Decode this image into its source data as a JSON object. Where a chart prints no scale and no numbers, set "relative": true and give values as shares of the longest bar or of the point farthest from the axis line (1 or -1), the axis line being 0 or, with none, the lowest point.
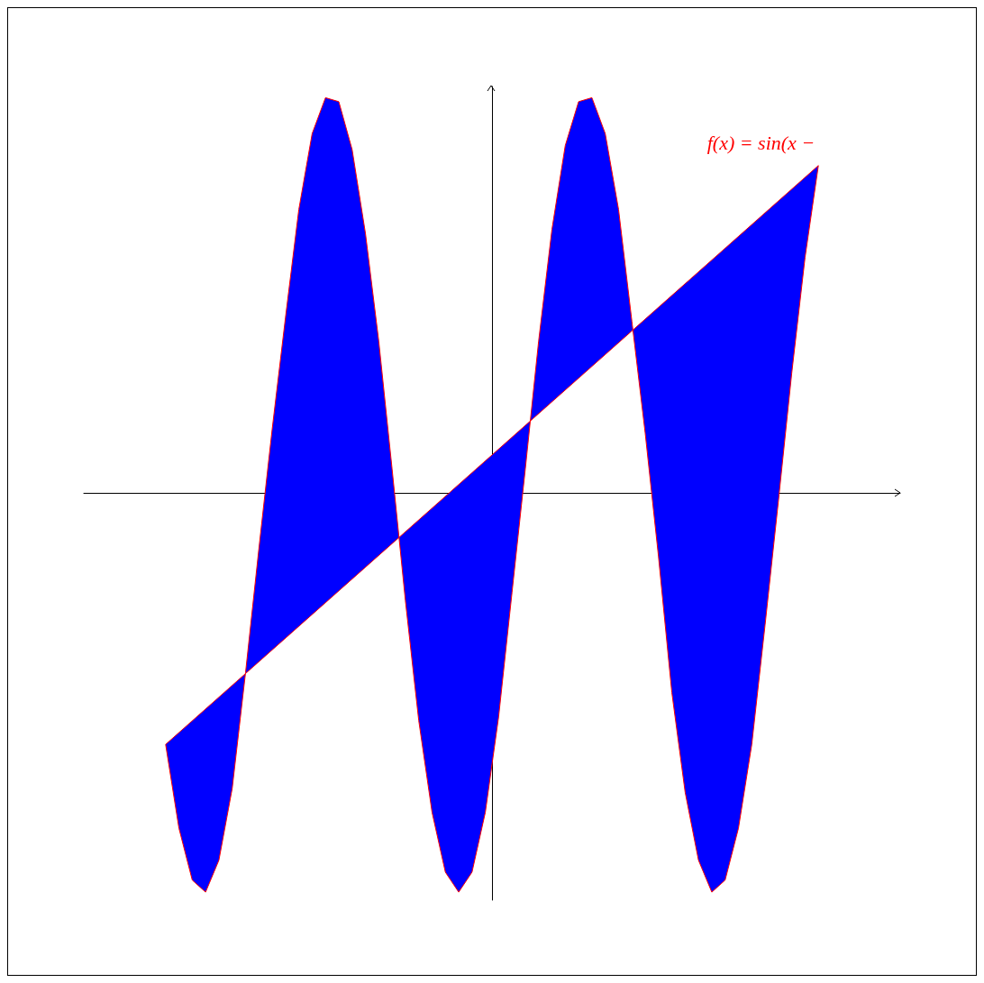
{
  "chart_data": {
    "type": "area",
    "relative": true,
    "categories": [
      null,
      null,
      null,
      null,
      null,
      null,
      null,
      null,
      null,
      null,
      null,
      null,
      null,
      null,
      null,
      null,
      null,
      null,
      null,
      null,
      null,
      null,
      null,
      null,
      null,
      null,
      null,
      null,
      null,
      null,
      null,
      null,
      null,
      null,
      null,
      null,
      null,
      null,
      null,
      null,
      null,
      null,
      null,
      null,
      null,
      null,
      null,
      null,
      null,
      null
    ],
    "series": [
      {
        "color": "#0000ff",
        "values": [
          -0.63,
          -0.84,
          -0.97,
          -1.0,
          -0.92,
          -0.74,
          -0.45,
          -0.14,
          0.16,
          0.44,
          0.71,
          0.9,
          0.99,
          0.98,
          0.86,
          0.65,
          0.38,
          0.06,
          -0.27,
          -0.57,
          -0.8,
          -0.95,
          -1.0,
          -0.95,
          -0.8,
          -0.56,
          -0.25,
          0.06,
          0.38,
          0.66,
          0.87,
          0.98,
          0.99,
          0.9,
          0.71,
          0.43,
          0.15,
          -0.16,
          -0.5,
          -0.75,
          -0.92,
          -1.0,
          -0.97,
          -0.84,
          -0.63,
          -0.33,
          -0.02,
          0.3,
          0.59,
          0.82
        ]
      }
    ],
    "annotations": [
      "f(x) = sin(x −"
    ],
    "grid": false
  }
}
